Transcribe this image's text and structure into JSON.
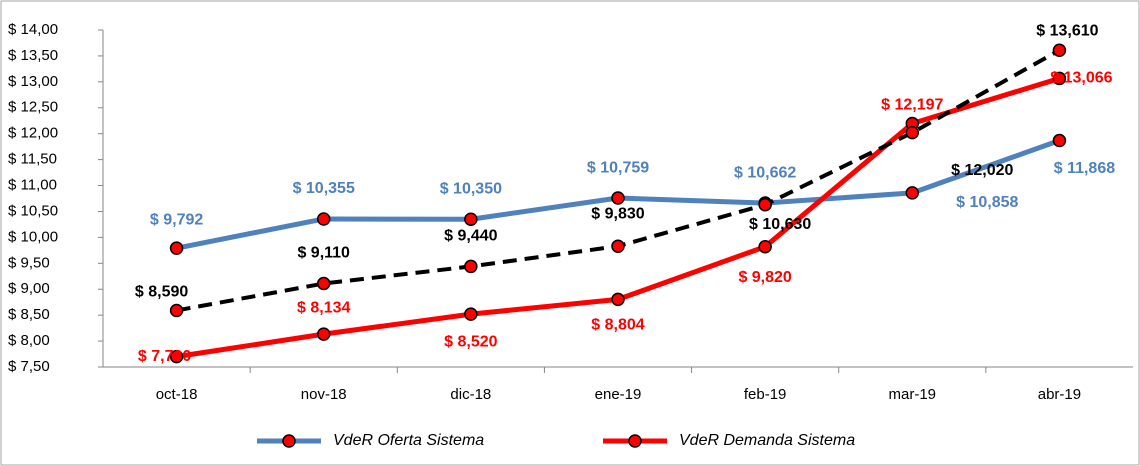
{
  "chart_data": {
    "type": "line",
    "categories": [
      "oct-18",
      "nov-18",
      "dic-18",
      "ene-19",
      "feb-19",
      "mar-19",
      "abr-19"
    ],
    "series": [
      {
        "name": "VdeR Oferta Sistema",
        "color": "#4f81bd",
        "values": [
          9.792,
          10.355,
          10.35,
          10.759,
          10.662,
          10.858,
          11.868
        ],
        "value_labels": [
          "$ 9,792",
          "$ 10,355",
          "$ 10,350",
          "$ 10,759",
          "$ 10,662",
          "$ 10,858",
          "$ 11,868"
        ]
      },
      {
        "name": "VdeR Demanda Sistema",
        "color": "#ff0000",
        "values": [
          7.7,
          8.134,
          8.52,
          8.804,
          9.82,
          12.197,
          13.066
        ],
        "value_labels": [
          "$ 7,700",
          "$ 8,134",
          "$ 8,520",
          "$ 8,804",
          "$ 9,820",
          "$ 12,197",
          "$ 13,066"
        ]
      },
      {
        "color": "#000000",
        "dashed": true,
        "values": [
          8.59,
          9.11,
          9.44,
          9.83,
          10.63,
          12.02,
          13.61
        ],
        "value_labels": [
          "$ 8,590",
          "$ 9,110",
          "$ 9,440",
          "$ 9,830",
          "$ 10,630",
          "$ 12,020",
          "$ 13,610"
        ]
      }
    ],
    "marker_color": "#ff0000",
    "ylim": [
      7.5,
      14
    ],
    "yticks": [
      {
        "value": 7.5,
        "label": "$ 7,50"
      },
      {
        "value": 8,
        "label": "$ 8,00"
      },
      {
        "value": 8.5,
        "label": "$ 8,50"
      },
      {
        "value": 9,
        "label": "$ 9,00"
      },
      {
        "value": 9.5,
        "label": "$ 9,50"
      },
      {
        "value": 10,
        "label": "$ 10,00"
      },
      {
        "value": 10.5,
        "label": "$ 10,50"
      },
      {
        "value": 11,
        "label": "$ 11,00"
      },
      {
        "value": 11.5,
        "label": "$ 11,50"
      },
      {
        "value": 12,
        "label": "$ 12,00"
      },
      {
        "value": 12.5,
        "label": "$ 12,50"
      },
      {
        "value": 13,
        "label": "$ 13,00"
      },
      {
        "value": 13.5,
        "label": "$ 13,50"
      },
      {
        "value": 14,
        "label": "$ 14,00"
      }
    ],
    "grid": false,
    "legend": "bottom"
  }
}
